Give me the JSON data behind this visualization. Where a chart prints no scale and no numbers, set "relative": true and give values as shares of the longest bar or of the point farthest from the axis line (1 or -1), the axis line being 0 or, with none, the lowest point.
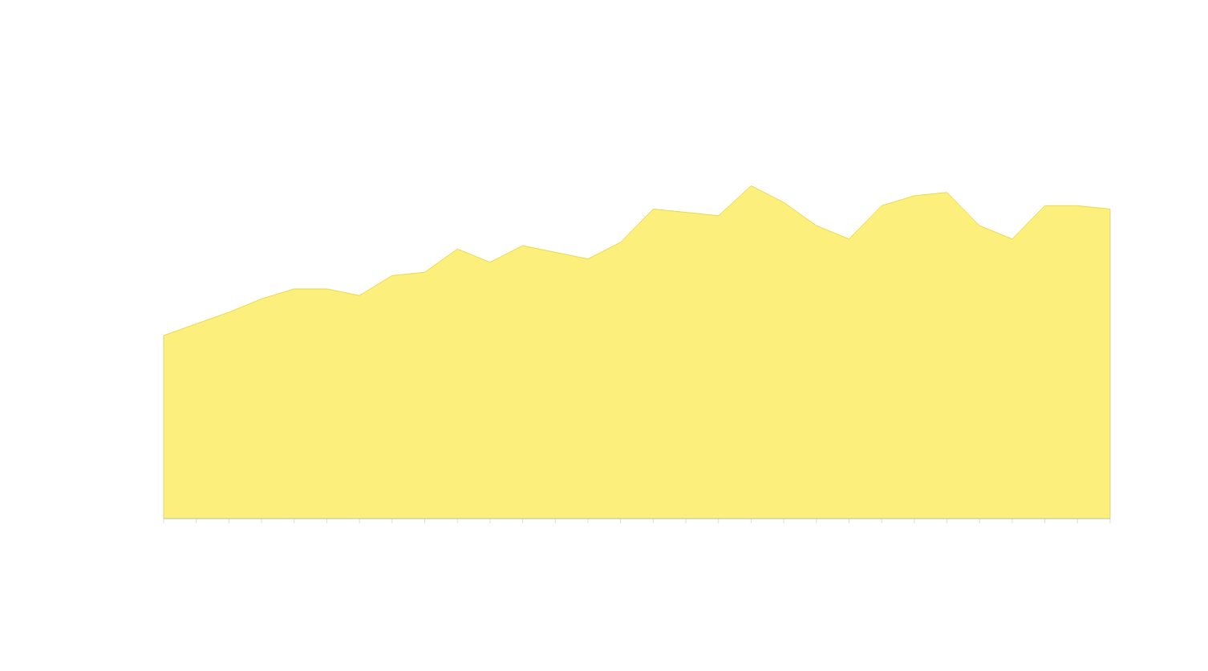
{
  "chart_data": {
    "type": "area",
    "relative": true,
    "color": "#fcef7c",
    "categories": [
      null,
      null,
      null,
      null,
      null,
      null,
      null,
      null,
      null,
      null,
      null,
      null,
      null,
      null,
      null,
      null,
      null,
      null,
      null,
      null,
      null,
      null,
      null,
      null,
      null,
      null,
      null,
      null,
      null,
      null
    ],
    "values": [
      0.55,
      0.585,
      0.62,
      0.66,
      0.69,
      0.69,
      0.67,
      0.73,
      0.74,
      0.81,
      0.77,
      0.82,
      0.8,
      0.78,
      0.83,
      0.93,
      0.92,
      0.91,
      1.0,
      0.95,
      0.88,
      0.84,
      0.94,
      0.97,
      0.98,
      0.88,
      0.84,
      0.94,
      0.94,
      0.93
    ]
  }
}
